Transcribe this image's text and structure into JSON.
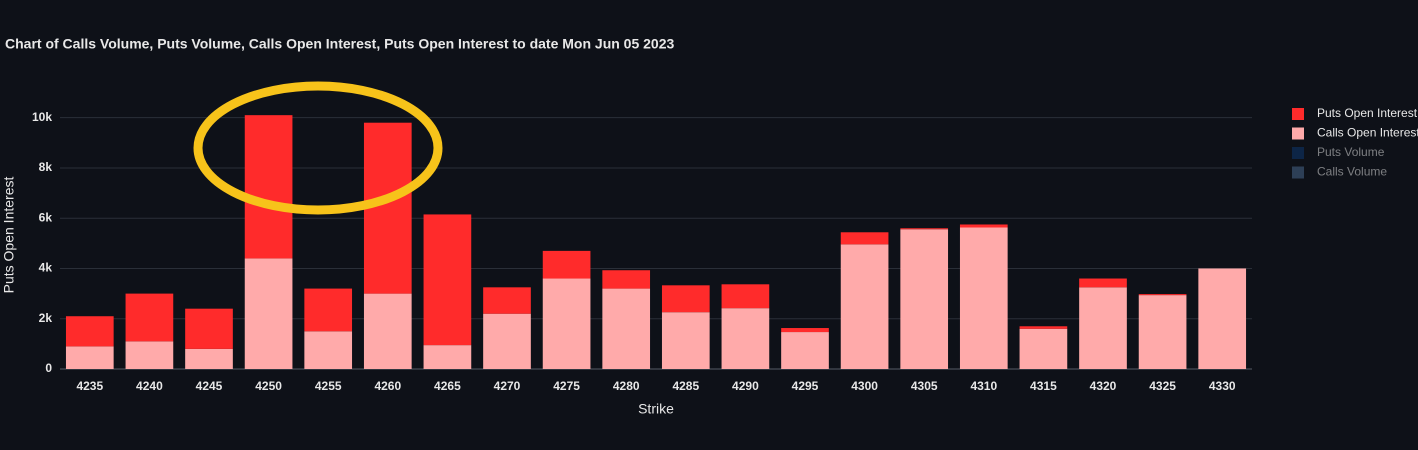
{
  "chart_data": {
    "type": "bar",
    "barmode": "stack",
    "title": "Chart of Calls Volume, Puts Volume, Calls Open Interest, Puts Open Interest to date Mon Jun 05 2023",
    "x_label": "Strike",
    "y_label": "Puts Open Interest",
    "categories": [
      "4235",
      "4240",
      "4245",
      "4250",
      "4255",
      "4260",
      "4265",
      "4270",
      "4275",
      "4280",
      "4285",
      "4290",
      "4295",
      "4300",
      "4305",
      "4310",
      "4315",
      "4320",
      "4325",
      "4330"
    ],
    "series": [
      {
        "name": "Puts Open Interest",
        "color": "#ff2b2b",
        "values": [
          1200,
          1900,
          1600,
          5700,
          1700,
          6800,
          5200,
          1050,
          1100,
          730,
          1070,
          950,
          160,
          480,
          40,
          120,
          100,
          350,
          40,
          0
        ]
      },
      {
        "name": "Calls Open Interest",
        "color": "#ffaaaa",
        "values": [
          900,
          1100,
          800,
          4400,
          1500,
          3000,
          950,
          2200,
          3600,
          3200,
          2260,
          2420,
          1470,
          4960,
          5560,
          5630,
          1600,
          3250,
          2940,
          4000
        ]
      },
      {
        "name": "Puts Volume",
        "color": "#0b3a73",
        "visible": "legendonly"
      },
      {
        "name": "Calls Volume",
        "color": "#4c6e94",
        "visible": "legendonly"
      }
    ],
    "ylim": [
      0,
      11300
    ],
    "yticks": [
      0,
      {
        "value": 2000,
        "label": "2k"
      },
      {
        "value": 4000,
        "label": "4k"
      },
      {
        "value": 6000,
        "label": "6k"
      },
      {
        "value": 8000,
        "label": "8k"
      },
      {
        "value": 10000,
        "label": "10k"
      }
    ],
    "grid": true,
    "legend": "right"
  }
}
